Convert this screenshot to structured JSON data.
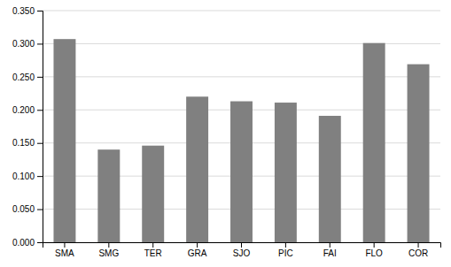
{
  "chart_data": {
    "type": "bar",
    "categories": [
      "SMA",
      "SMG",
      "TER",
      "GRA",
      "SJO",
      "PIC",
      "FAI",
      "FLO",
      "COR"
    ],
    "values": [
      0.307,
      0.14,
      0.146,
      0.22,
      0.213,
      0.211,
      0.191,
      0.301,
      0.269
    ],
    "color": "#808080",
    "ylim": [
      0.0,
      0.35
    ],
    "yticks": [
      {
        "value": 0.0,
        "label": "0.000"
      },
      {
        "value": 0.05,
        "label": "0.050"
      },
      {
        "value": 0.1,
        "label": "0.100"
      },
      {
        "value": 0.15,
        "label": "0.150"
      },
      {
        "value": 0.2,
        "label": "0.200"
      },
      {
        "value": 0.25,
        "label": "0.250"
      },
      {
        "value": 0.3,
        "label": "0.300"
      },
      {
        "value": 0.35,
        "label": "0.350"
      }
    ],
    "grid": true
  }
}
